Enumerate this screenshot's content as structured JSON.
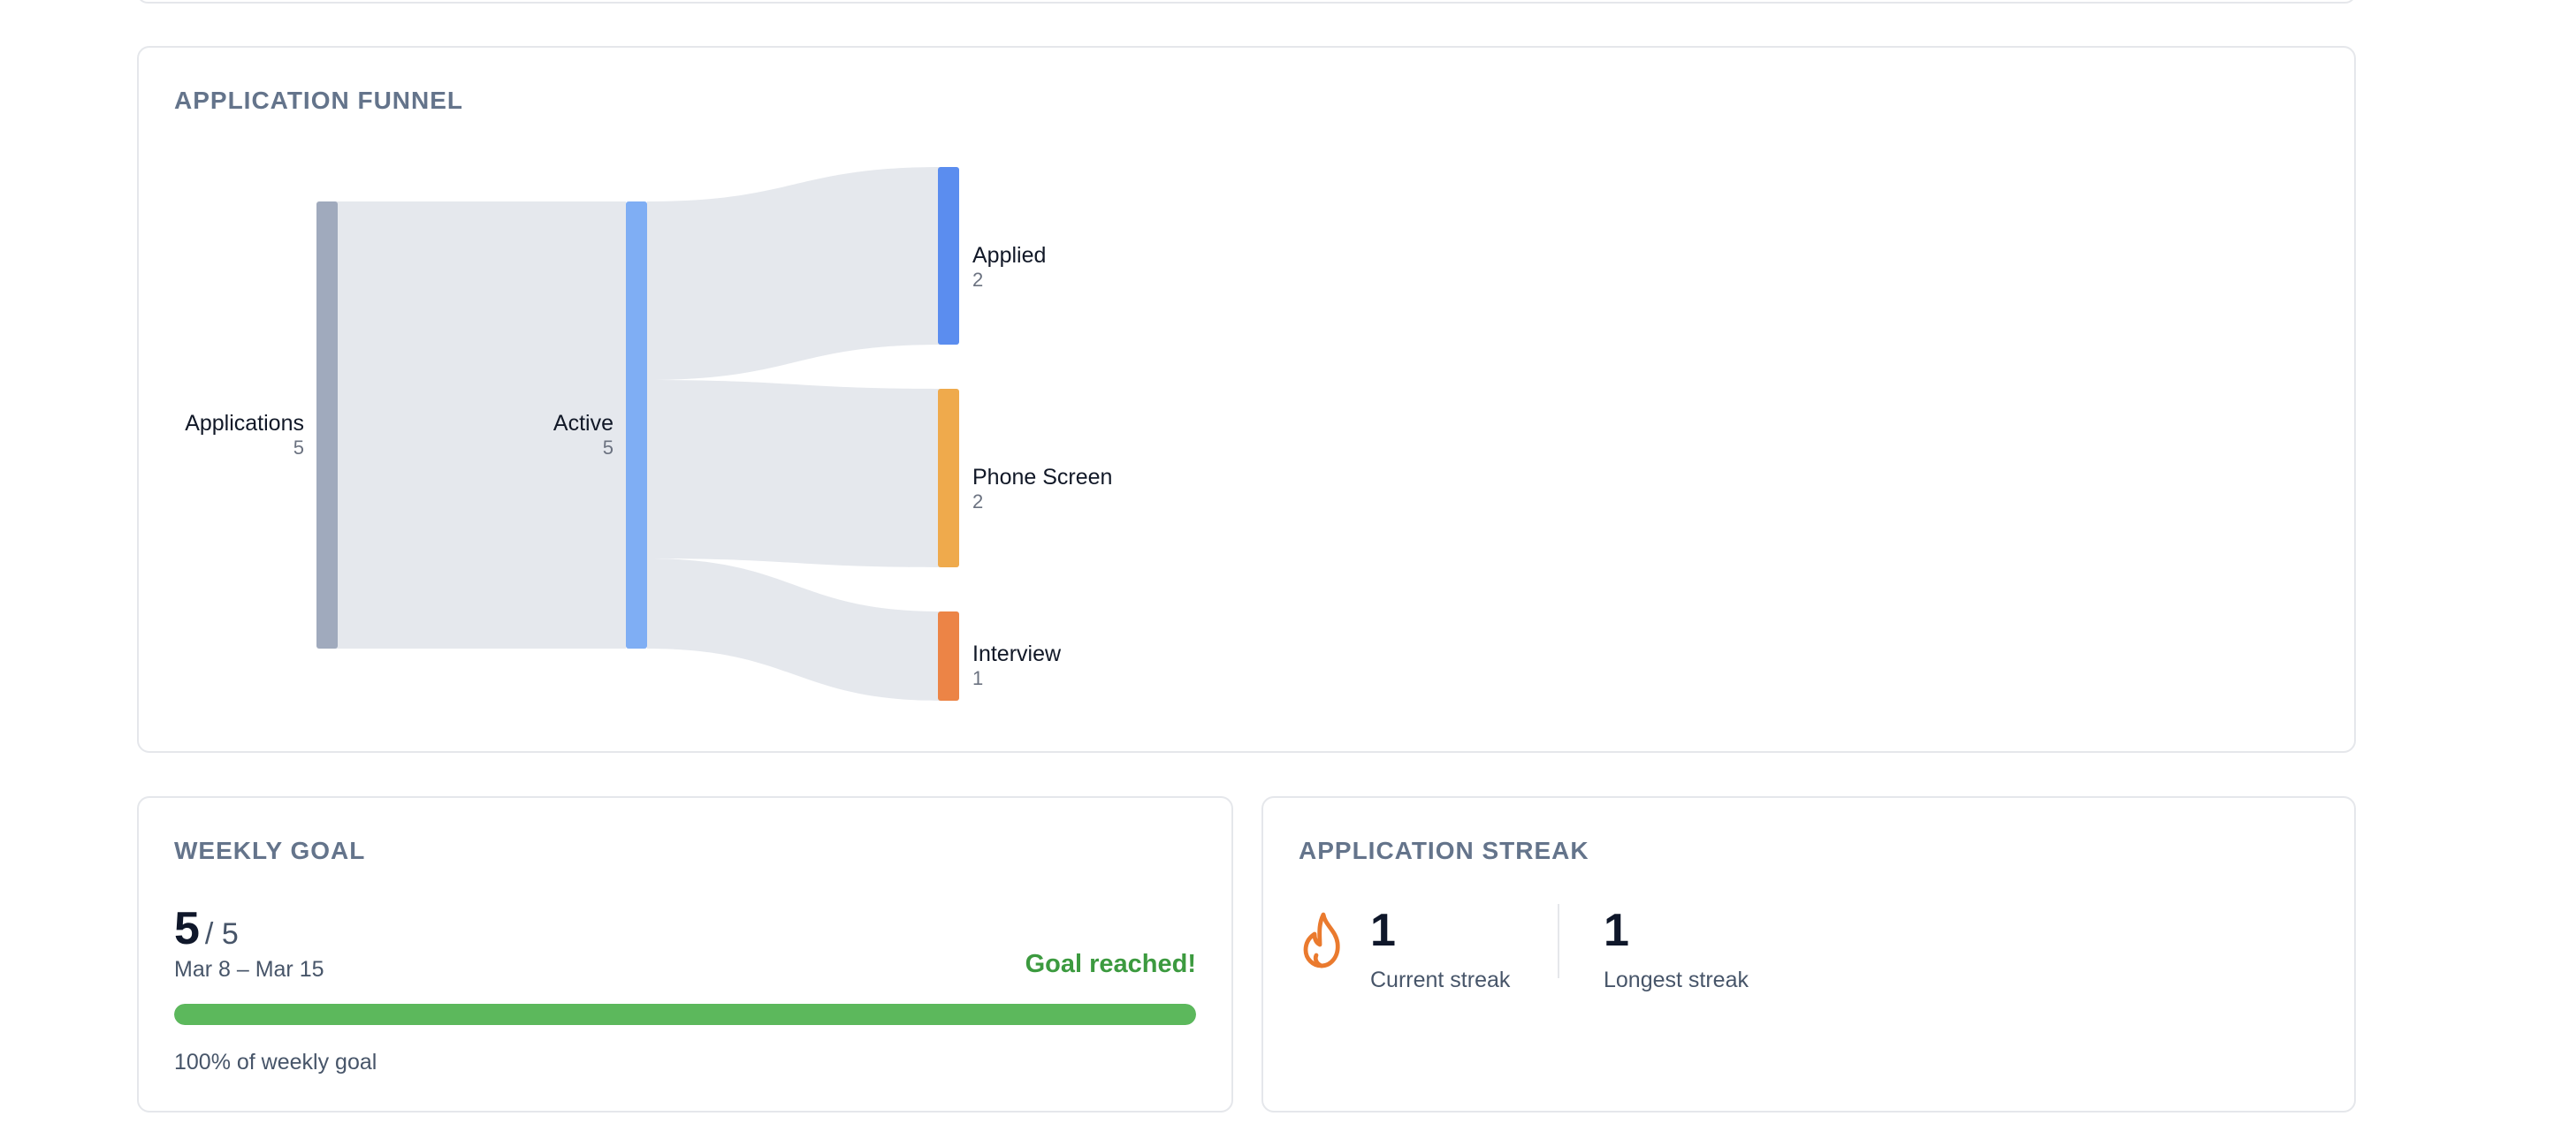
{
  "funnel": {
    "title": "APPLICATION FUNNEL",
    "colors": {
      "applications": "#a0aabd",
      "active": "#7faef4",
      "applied": "#5b8def",
      "phone_screen": "#efaa4c",
      "interview": "#ec8446",
      "link": "#e5e8ed"
    },
    "nodes": [
      {
        "id": "applications",
        "label": "Applications",
        "count": "5"
      },
      {
        "id": "active",
        "label": "Active",
        "count": "5"
      },
      {
        "id": "applied",
        "label": "Applied",
        "count": "2"
      },
      {
        "id": "phone_screen",
        "label": "Phone Screen",
        "count": "2"
      },
      {
        "id": "interview",
        "label": "Interview",
        "count": "1"
      }
    ]
  },
  "chart_data": {
    "type": "sankey",
    "nodes": [
      "Applications",
      "Active",
      "Applied",
      "Phone Screen",
      "Interview"
    ],
    "links": [
      {
        "source": "Applications",
        "target": "Active",
        "value": 5
      },
      {
        "source": "Active",
        "target": "Applied",
        "value": 2
      },
      {
        "source": "Active",
        "target": "Phone Screen",
        "value": 2
      },
      {
        "source": "Active",
        "target": "Interview",
        "value": 1
      }
    ]
  },
  "weekly_goal": {
    "title": "WEEKLY GOAL",
    "current": "5",
    "target": "/ 5",
    "range": "Mar 8 – Mar 15",
    "status": "Goal reached!",
    "progress_fraction": 1.0,
    "percent_text": "100% of weekly goal",
    "bar_color": "#5cb85c",
    "status_color": "#3c9a3f"
  },
  "streak": {
    "title": "APPLICATION STREAK",
    "icon": "flame-icon",
    "icon_color": "#ea7a2e",
    "current_value": "1",
    "current_label": "Current streak",
    "longest_value": "1",
    "longest_label": "Longest streak"
  }
}
